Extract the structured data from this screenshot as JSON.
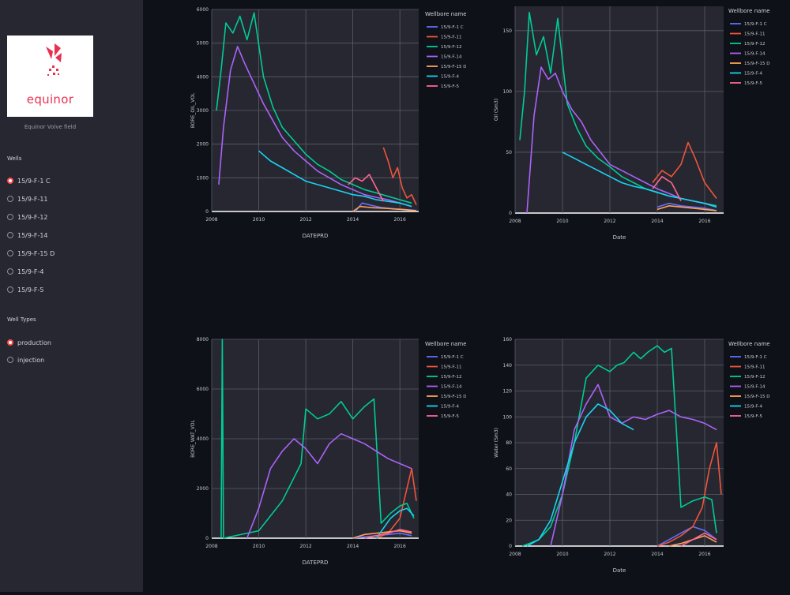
{
  "sidebar": {
    "logo_text": "equinor",
    "caption": "Equinor Volve field",
    "wells_label": "Wells",
    "wells": [
      "15/9-F-1 C",
      "15/9-F-11",
      "15/9-F-12",
      "15/9-F-14",
      "15/9-F-15 D",
      "15/9-F-4",
      "15/9-F-5"
    ],
    "selected_well": "15/9-F-1 C",
    "types_label": "Well Types",
    "types": [
      "production",
      "injection"
    ],
    "selected_type": "production"
  },
  "colors": {
    "accent": "#ff4b4b",
    "logo_red": "#e8304f",
    "sidebar_bg": "#262730",
    "app_bg": "#0e1117",
    "plot_bg": "#262730",
    "series": [
      "#636efa",
      "#ef553b",
      "#00cc96",
      "#ab63fa",
      "#ffa15a",
      "#19d3f3",
      "#ff6692"
    ]
  },
  "chart_data": [
    {
      "type": "line",
      "title": "",
      "xlabel": "DATEPRD",
      "ylabel": "BORE_OIL_VOL",
      "legend_title": "Wellbore name",
      "legend_placement": "right",
      "xlim": [
        2008,
        2016.8
      ],
      "ylim": [
        0,
        6000
      ],
      "x_ticks": [
        "2008",
        "2010",
        "2012",
        "2014",
        "2016"
      ],
      "y_ticks": [
        "0",
        "1000",
        "2000",
        "3000",
        "4000",
        "5000",
        "6000"
      ],
      "grid": true,
      "series": [
        {
          "name": "15/9-F-1 C",
          "x": [
            2014.1,
            2014.4,
            2014.8,
            2015.2,
            2015.6,
            2016.0,
            2016.4,
            2016.7
          ],
          "y": [
            0,
            250,
            180,
            120,
            90,
            70,
            50,
            30
          ]
        },
        {
          "name": "15/9-F-11",
          "x": [
            2015.3,
            2015.5,
            2015.7,
            2015.9,
            2016.1,
            2016.3,
            2016.5,
            2016.7
          ],
          "y": [
            1900,
            1500,
            1000,
            1300,
            700,
            400,
            500,
            200
          ]
        },
        {
          "name": "15/9-F-12",
          "x": [
            2008.2,
            2008.4,
            2008.6,
            2008.9,
            2009.2,
            2009.5,
            2009.8,
            2010.2,
            2010.6,
            2011.0,
            2011.5,
            2012.0,
            2012.5,
            2013.0,
            2013.5,
            2014.0,
            2014.5,
            2015.0,
            2015.5,
            2016.0,
            2016.5
          ],
          "y": [
            3000,
            4200,
            5600,
            5300,
            5800,
            5100,
            5900,
            4000,
            3100,
            2500,
            2100,
            1700,
            1400,
            1200,
            950,
            800,
            650,
            550,
            450,
            350,
            250
          ]
        },
        {
          "name": "15/9-F-14",
          "x": [
            2008.3,
            2008.5,
            2008.8,
            2009.1,
            2009.4,
            2009.8,
            2010.2,
            2010.6,
            2011.0,
            2011.5,
            2012.0,
            2012.5,
            2013.0,
            2013.5,
            2014.0,
            2014.5,
            2015.0,
            2015.5,
            2016.0,
            2016.5
          ],
          "y": [
            800,
            2500,
            4200,
            4900,
            4400,
            3800,
            3200,
            2700,
            2200,
            1800,
            1500,
            1200,
            1000,
            800,
            650,
            500,
            420,
            350,
            250,
            150
          ]
        },
        {
          "name": "15/9-F-15 D",
          "x": [
            2014.0,
            2014.3,
            2014.6,
            2014.9,
            2015.2,
            2015.5,
            2015.8,
            2016.1,
            2016.4,
            2016.7
          ],
          "y": [
            0,
            150,
            130,
            110,
            100,
            90,
            70,
            60,
            40,
            20
          ]
        },
        {
          "name": "15/9-F-4",
          "x": [
            2010.0,
            2010.5,
            2011.0,
            2011.5,
            2012.0,
            2012.5,
            2013.0,
            2013.5,
            2014.0,
            2014.5,
            2015.0,
            2015.5,
            2016.0,
            2016.5
          ],
          "y": [
            1800,
            1500,
            1300,
            1100,
            900,
            800,
            700,
            600,
            500,
            450,
            350,
            300,
            250,
            150
          ]
        },
        {
          "name": "15/9-F-5",
          "x": [
            2013.8,
            2014.1,
            2014.4,
            2014.7,
            2015.0,
            2015.3
          ],
          "y": [
            800,
            1000,
            900,
            1100,
            700,
            300
          ]
        }
      ]
    },
    {
      "type": "line",
      "title": "",
      "xlabel": "Date",
      "ylabel": "Oil (Sm3)",
      "legend_title": "Wellbore name",
      "legend_placement": "right",
      "xlim": [
        2008,
        2016.8
      ],
      "ylim": [
        0,
        170
      ],
      "x_ticks": [
        "2008",
        "2010",
        "2012",
        "2014",
        "2016"
      ],
      "y_ticks": [
        "0",
        "50",
        "100",
        "150"
      ],
      "grid": true,
      "series": [
        {
          "name": "15/9-F-1 C",
          "x": [
            2014.0,
            2014.5,
            2015.0,
            2015.5,
            2016.0,
            2016.5
          ],
          "y": [
            5,
            8,
            6,
            5,
            4,
            2
          ]
        },
        {
          "name": "15/9-F-11",
          "x": [
            2013.8,
            2014.2,
            2014.6,
            2015.0,
            2015.3,
            2015.6,
            2016.0,
            2016.5
          ],
          "y": [
            25,
            35,
            30,
            40,
            58,
            45,
            25,
            12
          ]
        },
        {
          "name": "15/9-F-12",
          "x": [
            2008.2,
            2008.4,
            2008.6,
            2008.9,
            2009.2,
            2009.5,
            2009.8,
            2010.2,
            2010.6,
            2011.0,
            2011.5,
            2012.0,
            2012.5,
            2013.0,
            2013.5,
            2014.0,
            2014.5,
            2015.0,
            2015.5,
            2016.0,
            2016.5
          ],
          "y": [
            60,
            100,
            165,
            130,
            145,
            115,
            160,
            90,
            70,
            55,
            45,
            38,
            30,
            25,
            20,
            17,
            14,
            12,
            10,
            8,
            6
          ]
        },
        {
          "name": "15/9-F-14",
          "x": [
            2008.5,
            2008.8,
            2009.1,
            2009.4,
            2009.7,
            2010.0,
            2010.4,
            2010.8,
            2011.2,
            2011.6,
            2012.0,
            2012.5,
            2013.0,
            2013.5,
            2014.0,
            2014.5,
            2015.0,
            2015.5,
            2016.0,
            2016.5
          ],
          "y": [
            0,
            80,
            120,
            110,
            115,
            100,
            85,
            75,
            60,
            50,
            40,
            35,
            30,
            25,
            20,
            16,
            12,
            10,
            8,
            5
          ]
        },
        {
          "name": "15/9-F-15 D",
          "x": [
            2014.0,
            2014.5,
            2015.0,
            2015.5,
            2016.0,
            2016.5
          ],
          "y": [
            3,
            6,
            5,
            4,
            3,
            2
          ]
        },
        {
          "name": "15/9-F-4",
          "x": [
            2010.0,
            2010.5,
            2011.0,
            2011.5,
            2012.0,
            2012.5,
            2013.0,
            2013.5,
            2014.0,
            2014.5,
            2015.0,
            2015.5,
            2016.0,
            2016.5
          ],
          "y": [
            50,
            45,
            40,
            35,
            30,
            25,
            22,
            20,
            17,
            14,
            12,
            10,
            8,
            5
          ]
        },
        {
          "name": "15/9-F-5",
          "x": [
            2013.8,
            2014.2,
            2014.6,
            2015.0
          ],
          "y": [
            20,
            30,
            25,
            10
          ]
        }
      ]
    },
    {
      "type": "line",
      "title": "",
      "xlabel": "DATEPRD",
      "ylabel": "BORE_WAT_VOL",
      "legend_title": "Wellbore name",
      "legend_placement": "right",
      "xlim": [
        2008,
        2016.8
      ],
      "ylim": [
        0,
        8000
      ],
      "x_ticks": [
        "2008",
        "2010",
        "2012",
        "2014",
        "2016"
      ],
      "y_ticks": [
        "0",
        "2000",
        "4000",
        "6000",
        "8000"
      ],
      "grid": true,
      "series": [
        {
          "name": "15/9-F-1 C",
          "x": [
            2014.0,
            2014.5,
            2015.0,
            2015.5,
            2016.0,
            2016.5
          ],
          "y": [
            0,
            50,
            100,
            150,
            200,
            100
          ]
        },
        {
          "name": "15/9-F-11",
          "x": [
            2015.0,
            2015.5,
            2016.0,
            2016.3,
            2016.5,
            2016.7
          ],
          "y": [
            0,
            200,
            800,
            2000,
            2800,
            1500
          ]
        },
        {
          "name": "15/9-F-12",
          "x": [
            2008.4,
            2008.45,
            2008.5,
            2010.0,
            2011.0,
            2011.8,
            2012.0,
            2012.5,
            2013.0,
            2013.5,
            2014.0,
            2014.5,
            2014.9,
            2015.2,
            2015.6,
            2016.0,
            2016.3,
            2016.6
          ],
          "y": [
            0,
            8000,
            0,
            300,
            1500,
            3000,
            5200,
            4800,
            5000,
            5500,
            4800,
            5300,
            5600,
            600,
            1000,
            1300,
            1400,
            800
          ]
        },
        {
          "name": "15/9-F-14",
          "x": [
            2009.5,
            2010.0,
            2010.5,
            2011.0,
            2011.5,
            2012.0,
            2012.5,
            2013.0,
            2013.5,
            2014.0,
            2014.5,
            2015.0,
            2015.5,
            2016.0,
            2016.5
          ],
          "y": [
            0,
            1200,
            2800,
            3500,
            4000,
            3600,
            3000,
            3800,
            4200,
            4000,
            3800,
            3500,
            3200,
            3000,
            2800
          ]
        },
        {
          "name": "15/9-F-15 D",
          "x": [
            2014.0,
            2014.5,
            2015.0,
            2015.5,
            2016.0,
            2016.5
          ],
          "y": [
            0,
            150,
            200,
            250,
            300,
            200
          ]
        },
        {
          "name": "15/9-F-4",
          "x": [
            2015.0,
            2015.3,
            2015.6,
            2016.0,
            2016.3,
            2016.6
          ],
          "y": [
            0,
            400,
            800,
            1100,
            1200,
            900
          ]
        },
        {
          "name": "15/9-F-5",
          "x": [
            2014.5,
            2015.0,
            2015.5,
            2016.0,
            2016.5
          ],
          "y": [
            0,
            100,
            200,
            350,
            250
          ]
        }
      ]
    },
    {
      "type": "line",
      "title": "",
      "xlabel": "Date",
      "ylabel": "Water (Sm3)",
      "legend_title": "Wellbore name",
      "legend_placement": "right",
      "xlim": [
        2008,
        2016.8
      ],
      "ylim": [
        0,
        160
      ],
      "x_ticks": [
        "2008",
        "2010",
        "2012",
        "2014",
        "2016"
      ],
      "y_ticks": [
        "0",
        "20",
        "40",
        "60",
        "80",
        "100",
        "120",
        "140",
        "160"
      ],
      "grid": true,
      "series": [
        {
          "name": "15/9-F-1 C",
          "x": [
            2014.0,
            2014.5,
            2015.0,
            2015.5,
            2016.0,
            2016.5
          ],
          "y": [
            0,
            5,
            10,
            15,
            12,
            5
          ]
        },
        {
          "name": "15/9-F-11",
          "x": [
            2014.0,
            2014.5,
            2015.0,
            2015.5,
            2015.9,
            2016.2,
            2016.5,
            2016.7
          ],
          "y": [
            0,
            3,
            8,
            15,
            30,
            60,
            80,
            40
          ]
        },
        {
          "name": "15/9-F-12",
          "x": [
            2008.3,
            2008.6,
            2009.0,
            2009.5,
            2010.0,
            2010.5,
            2011.0,
            2011.5,
            2012.0,
            2012.3,
            2012.6,
            2013.0,
            2013.3,
            2013.6,
            2014.0,
            2014.3,
            2014.6,
            2015.0,
            2015.5,
            2016.0,
            2016.3,
            2016.5
          ],
          "y": [
            0,
            2,
            5,
            15,
            40,
            80,
            130,
            140,
            135,
            140,
            142,
            150,
            145,
            150,
            155,
            150,
            153,
            30,
            35,
            38,
            36,
            10
          ]
        },
        {
          "name": "15/9-F-14",
          "x": [
            2009.5,
            2010.0,
            2010.5,
            2011.0,
            2011.5,
            2012.0,
            2012.5,
            2013.0,
            2013.5,
            2014.0,
            2014.5,
            2015.0,
            2015.5,
            2016.0,
            2016.5
          ],
          "y": [
            0,
            40,
            90,
            110,
            125,
            100,
            95,
            100,
            98,
            102,
            105,
            100,
            98,
            95,
            90
          ]
        },
        {
          "name": "15/9-F-15 D",
          "x": [
            2014.5,
            2015.0,
            2015.5,
            2016.0,
            2016.5
          ],
          "y": [
            0,
            2,
            5,
            8,
            3
          ]
        },
        {
          "name": "15/9-F-4",
          "x": [
            2008.5,
            2009.0,
            2009.5,
            2010.0,
            2010.5,
            2011.0,
            2011.5,
            2012.0,
            2012.5,
            2013.0
          ],
          "y": [
            0,
            5,
            20,
            50,
            80,
            100,
            110,
            105,
            95,
            90
          ]
        },
        {
          "name": "15/9-F-5",
          "x": [
            2015.0,
            2015.5,
            2016.0,
            2016.5
          ],
          "y": [
            0,
            5,
            10,
            5
          ]
        }
      ]
    }
  ]
}
